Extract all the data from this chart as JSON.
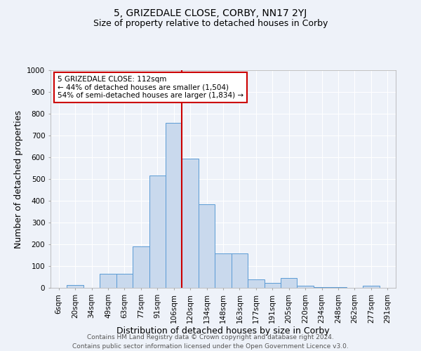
{
  "title": "5, GRIZEDALE CLOSE, CORBY, NN17 2YJ",
  "subtitle": "Size of property relative to detached houses in Corby",
  "xlabel": "Distribution of detached houses by size in Corby",
  "ylabel": "Number of detached properties",
  "categories": [
    "6sqm",
    "20sqm",
    "34sqm",
    "49sqm",
    "63sqm",
    "77sqm",
    "91sqm",
    "106sqm",
    "120sqm",
    "134sqm",
    "148sqm",
    "163sqm",
    "177sqm",
    "191sqm",
    "205sqm",
    "220sqm",
    "234sqm",
    "248sqm",
    "262sqm",
    "277sqm",
    "291sqm"
  ],
  "values": [
    0,
    13,
    0,
    63,
    63,
    190,
    515,
    757,
    595,
    385,
    157,
    157,
    40,
    22,
    45,
    10,
    3,
    3,
    0,
    10,
    0
  ],
  "bar_color": "#c9d9ed",
  "bar_edge_color": "#5b9bd5",
  "vline_color": "#cc0000",
  "annotation_text": "5 GRIZEDALE CLOSE: 112sqm\n← 44% of detached houses are smaller (1,504)\n54% of semi-detached houses are larger (1,834) →",
  "annotation_box_color": "#ffffff",
  "annotation_box_edge_color": "#cc0000",
  "ylim": [
    0,
    1000
  ],
  "yticks": [
    0,
    100,
    200,
    300,
    400,
    500,
    600,
    700,
    800,
    900,
    1000
  ],
  "footer_line1": "Contains HM Land Registry data © Crown copyright and database right 2024.",
  "footer_line2": "Contains public sector information licensed under the Open Government Licence v3.0.",
  "bg_color": "#eef2f9",
  "grid_color": "#ffffff",
  "title_fontsize": 10,
  "subtitle_fontsize": 9,
  "axis_label_fontsize": 9,
  "tick_fontsize": 7.5,
  "footer_fontsize": 6.5,
  "annotation_fontsize": 7.5,
  "vline_index": 7.5
}
